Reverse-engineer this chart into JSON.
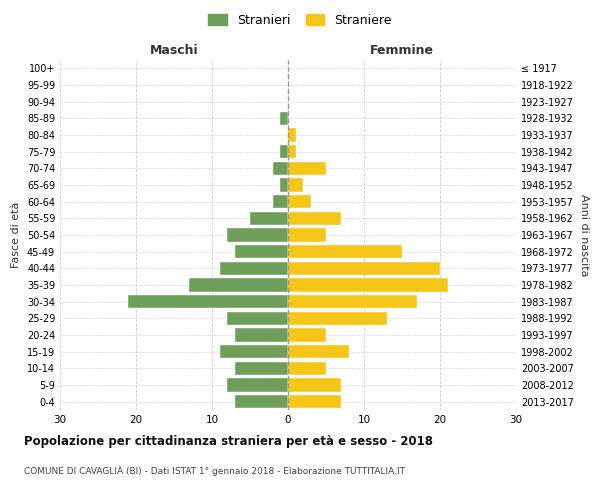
{
  "age_groups": [
    "0-4",
    "5-9",
    "10-14",
    "15-19",
    "20-24",
    "25-29",
    "30-34",
    "35-39",
    "40-44",
    "45-49",
    "50-54",
    "55-59",
    "60-64",
    "65-69",
    "70-74",
    "75-79",
    "80-84",
    "85-89",
    "90-94",
    "95-99",
    "100+"
  ],
  "birth_years": [
    "2013-2017",
    "2008-2012",
    "2003-2007",
    "1998-2002",
    "1993-1997",
    "1988-1992",
    "1983-1987",
    "1978-1982",
    "1973-1977",
    "1968-1972",
    "1963-1967",
    "1958-1962",
    "1953-1957",
    "1948-1952",
    "1943-1947",
    "1938-1942",
    "1933-1937",
    "1928-1932",
    "1923-1927",
    "1918-1922",
    "≤ 1917"
  ],
  "maschi": [
    7,
    8,
    7,
    9,
    7,
    8,
    21,
    13,
    9,
    7,
    8,
    5,
    2,
    1,
    2,
    1,
    0,
    1,
    0,
    0,
    0
  ],
  "femmine": [
    7,
    7,
    5,
    8,
    5,
    13,
    17,
    21,
    20,
    15,
    5,
    7,
    3,
    2,
    5,
    1,
    1,
    0,
    0,
    0,
    0
  ],
  "maschi_color": "#6d9e5a",
  "femmine_color": "#f5c518",
  "background_color": "#ffffff",
  "grid_color": "#cccccc",
  "title": "Popolazione per cittadinanza straniera per età e sesso - 2018",
  "subtitle": "COMUNE DI CAVAGLIÀ (BI) - Dati ISTAT 1° gennaio 2018 - Elaborazione TUTTITALIA.IT",
  "xlabel_left": "Maschi",
  "xlabel_right": "Femmine",
  "ylabel_left": "Fasce di età",
  "ylabel_right": "Anni di nascita",
  "legend_maschi": "Stranieri",
  "legend_femmine": "Straniere",
  "xlim": 30,
  "bar_height": 0.8
}
